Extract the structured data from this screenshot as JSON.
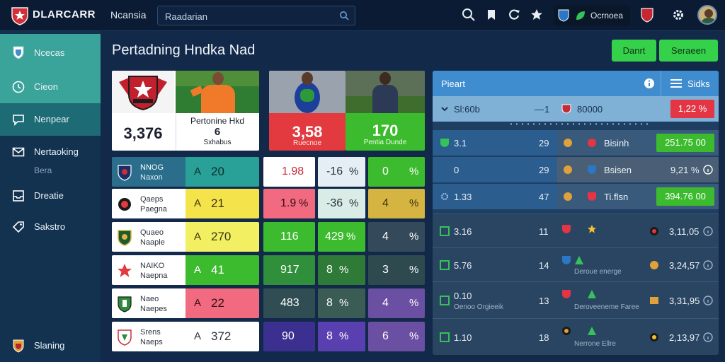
{
  "app": {
    "brand": "DLARCARR",
    "nav_label": "Ncansia"
  },
  "search": {
    "placeholder": "Raadarian"
  },
  "league": {
    "label": "Ocrnoea"
  },
  "colors": {
    "accent_green": "#36d14a",
    "accent_teal": "#2aa198",
    "panel_blue": "#3f8ccf",
    "danger_red": "#e33543"
  },
  "sidebar": {
    "items": [
      {
        "label": "Ncecas",
        "icon": "shield-icon"
      },
      {
        "label": "Cieon",
        "icon": "clock-icon"
      },
      {
        "label": "Nenpear",
        "icon": "chat-icon"
      },
      {
        "label": "Nertaoking",
        "icon": "mail-icon"
      },
      {
        "label": "Dreatie",
        "icon": "inbox-icon"
      },
      {
        "label": "Sakstro",
        "icon": "tag-icon"
      }
    ],
    "sub_label": "Bera",
    "footer_label": "Slaning"
  },
  "page": {
    "title": "Pertadning Hndka Nad"
  },
  "buttons": {
    "primary": "Danrt",
    "secondary": "Seraeen"
  },
  "hero": {
    "card1_value": "3,376",
    "card1_caption_1": "Pertonine Hkd",
    "card1_caption_2": "6",
    "card1_caption_3": "Sxhabus",
    "card2_value": "3,58",
    "card2_caption": "Ruecnoe",
    "card3_value": "170",
    "card3_caption": "Pentia Dunde"
  },
  "teams": [
    {
      "name_1": "NNOG",
      "name_2": "Naxon",
      "symbol": "A",
      "value": "20"
    },
    {
      "name_1": "Qaeps",
      "name_2": "Paegna",
      "symbol": "A",
      "value": "21"
    },
    {
      "name_1": "Quaeo",
      "name_2": "Naaple",
      "symbol": "A",
      "value": "270"
    },
    {
      "name_1": "NAIKO",
      "name_2": "Naepna",
      "symbol": "A",
      "value": "41"
    },
    {
      "name_1": "Naeo",
      "name_2": "Naepes",
      "symbol": "A",
      "value": "22"
    },
    {
      "name_1": "Srens",
      "name_2": "Naeps",
      "symbol": "A",
      "value": "372"
    }
  ],
  "stats": [
    {
      "a": "1.98",
      "b": "-16",
      "b_unit": "%",
      "c": "0",
      "c_unit": "%"
    },
    {
      "a": "1.9",
      "a_unit": "%",
      "b": "-36",
      "b_unit": "%",
      "c": "4",
      "c_unit": "%"
    },
    {
      "a": "116",
      "b": "429",
      "b_unit": "%",
      "c": "4",
      "c_unit": "%"
    },
    {
      "a": "917",
      "b": "8",
      "b_unit": "%",
      "c": "3",
      "c_unit": "%"
    },
    {
      "a": "483",
      "b": "8",
      "b_unit": "%",
      "c": "4",
      "c_unit": "%"
    },
    {
      "a": "90",
      "b": "8",
      "b_unit": "%",
      "c": "6",
      "c_unit": "%"
    }
  ],
  "panel": {
    "title": "Pieart",
    "menu_label": "Sidks",
    "summary": {
      "label": "Sl:60b",
      "dash": "1",
      "value": "80000",
      "badge": "1,22",
      "badge_unit": "%"
    },
    "rows": [
      {
        "left": "3.1",
        "num": "29",
        "team": "Bisinh",
        "badge": "251.75",
        "badge_unit": "00"
      },
      {
        "left": "0",
        "num": "29",
        "team": "Bsisen",
        "badge": "9,21",
        "badge_unit": "%"
      },
      {
        "left": "1.33",
        "num": "47",
        "team": "Ti.flsn",
        "badge": "394.76",
        "badge_unit": "00"
      }
    ],
    "list": [
      {
        "left": "3.16",
        "num": "11",
        "team": "",
        "value": "3,11,05"
      },
      {
        "left": "5.76",
        "num": "14",
        "team": "Deroue energe",
        "value": "3,24,57"
      },
      {
        "left": "0.10",
        "sub": "Oenoo Orgieeik",
        "num": "13",
        "team": "Deroveeneme Faree",
        "value": "3,31,95"
      },
      {
        "left": "1.10",
        "num": "18",
        "team": "Nerrone Ellre",
        "value": "2,13,97"
      }
    ]
  }
}
